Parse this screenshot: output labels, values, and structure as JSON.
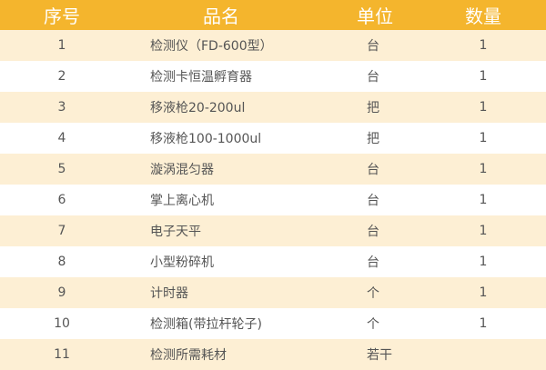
{
  "colors": {
    "header": "#F4B52D",
    "row_alt": "#FDEFD4",
    "text": "#555555"
  },
  "header": {
    "seq": "序号",
    "name": "品名",
    "unit": "单位",
    "qty": "数量"
  },
  "rows": [
    {
      "seq": "1",
      "name": "检测仪（FD-600型）",
      "unit": "台",
      "qty": "1"
    },
    {
      "seq": "2",
      "name": "检测卡恒温孵育器",
      "unit": "台",
      "qty": "1"
    },
    {
      "seq": "3",
      "name": "移液枪20-200ul",
      "unit": "把",
      "qty": "1"
    },
    {
      "seq": "4",
      "name": "移液枪100-1000ul",
      "unit": "把",
      "qty": "1"
    },
    {
      "seq": "5",
      "name": "漩涡混匀器",
      "unit": "台",
      "qty": "1"
    },
    {
      "seq": "6",
      "name": "掌上离心机",
      "unit": "台",
      "qty": "1"
    },
    {
      "seq": "7",
      "name": "电子天平",
      "unit": "台",
      "qty": "1"
    },
    {
      "seq": "8",
      "name": "小型粉碎机",
      "unit": "台",
      "qty": "1"
    },
    {
      "seq": "9",
      "name": "计时器",
      "unit": "个",
      "qty": "1"
    },
    {
      "seq": "10",
      "name": "检测箱(带拉杆轮子)",
      "unit": "个",
      "qty": "1"
    },
    {
      "seq": "11",
      "name": "检测所需耗材",
      "unit": "若干",
      "qty": ""
    }
  ]
}
